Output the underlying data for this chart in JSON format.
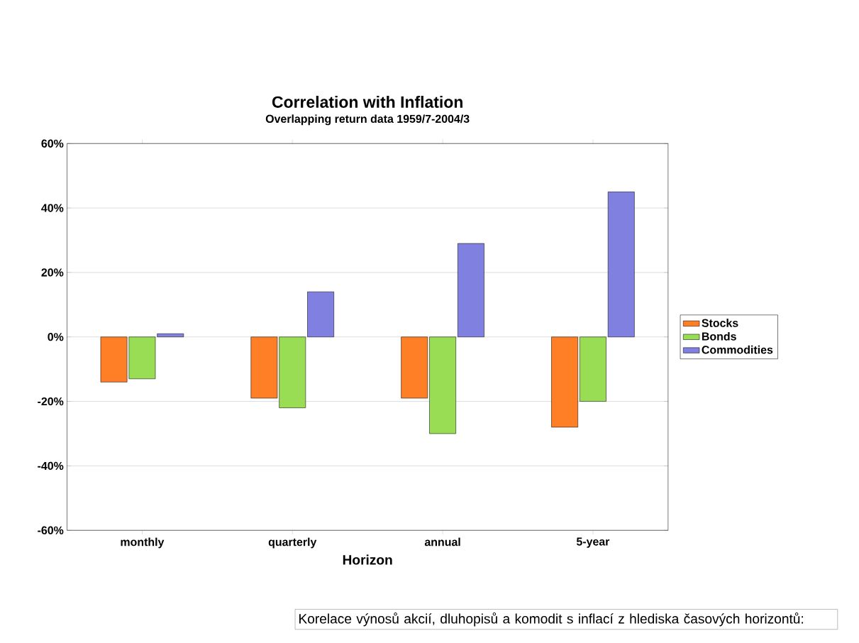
{
  "chart_data": {
    "type": "bar",
    "title": "Correlation with Inflation",
    "subtitle": "Overlapping return data 1959/7-2004/3",
    "xlabel": "Horizon",
    "categories": [
      "monthly",
      "quarterly",
      "annual",
      "5-year"
    ],
    "series": [
      {
        "name": "Stocks",
        "color": "#ff7f27",
        "values": [
          -14,
          -19,
          -19,
          -28
        ]
      },
      {
        "name": "Bonds",
        "color": "#99dd55",
        "values": [
          -13,
          -22,
          -30,
          -20
        ]
      },
      {
        "name": "Commodities",
        "color": "#8080e0",
        "values": [
          1,
          14,
          29,
          45
        ]
      }
    ],
    "ylim": [
      -60,
      60
    ],
    "yticks": [
      {
        "value": -60,
        "label": "-60%"
      },
      {
        "value": -40,
        "label": "-40%"
      },
      {
        "value": -20,
        "label": "-20%"
      },
      {
        "value": 0,
        "label": "0%"
      },
      {
        "value": 20,
        "label": "20%"
      },
      {
        "value": 40,
        "label": "40%"
      },
      {
        "value": 60,
        "label": "60%"
      }
    ],
    "grid": "y",
    "legend": "right",
    "annotations": [
      "Korelace výnosů akcií, dluhopisů a komodit s inflací z hlediska časových horizontů:"
    ]
  }
}
